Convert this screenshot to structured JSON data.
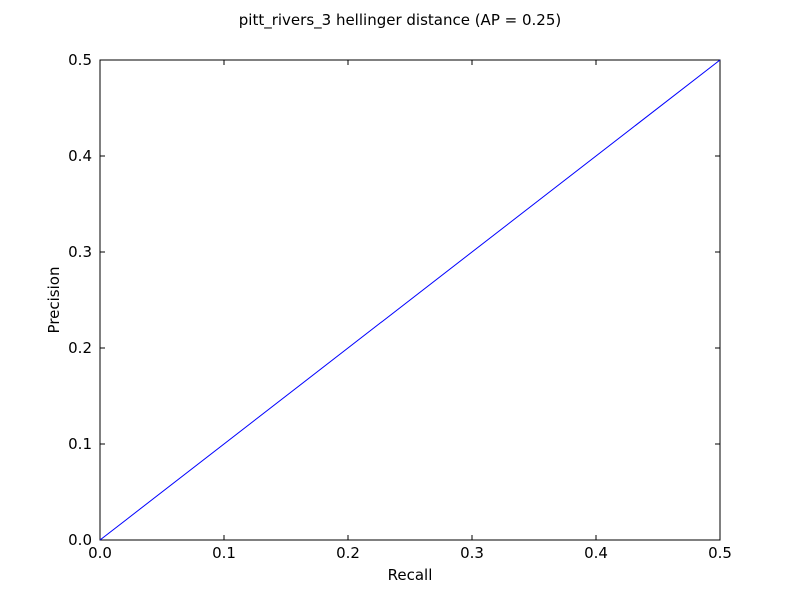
{
  "chart_data": {
    "type": "line",
    "title": "pitt_rivers_3 hellinger distance  (AP = 0.25)",
    "xlabel": "Recall",
    "ylabel": "Precision",
    "xlim": [
      0.0,
      0.5
    ],
    "ylim": [
      0.0,
      0.5
    ],
    "xticks": [
      "0.0",
      "0.1",
      "0.2",
      "0.3",
      "0.4",
      "0.5"
    ],
    "yticks": [
      "0.0",
      "0.1",
      "0.2",
      "0.3",
      "0.4",
      "0.5"
    ],
    "grid": false,
    "series": [
      {
        "color": "#0000ff",
        "x": [
          0.0,
          0.5
        ],
        "y": [
          0.0,
          0.5
        ]
      }
    ]
  }
}
